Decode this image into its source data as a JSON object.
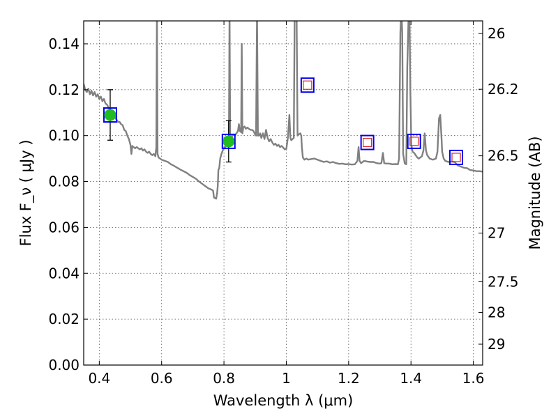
{
  "chart_data": {
    "type": "line",
    "xlabel": "Wavelength  λ (μm)",
    "ylabel": "Flux  F_ν  ( μJy )",
    "ylabel_right": "Magnitude (AB)",
    "xlim": [
      0.35,
      1.63
    ],
    "ylim": [
      0.0,
      0.15
    ],
    "grid": true,
    "grid_style": "dotted",
    "x_ticks": [
      0.4,
      0.6,
      0.8,
      1.0,
      1.2,
      1.4,
      1.6
    ],
    "x_tick_labels": [
      "0.4",
      "0.6",
      "0.8",
      "1",
      "1.2",
      "1.4",
      "1.6"
    ],
    "y_ticks": [
      0.0,
      0.02,
      0.04,
      0.06,
      0.08,
      0.1,
      0.12,
      0.14
    ],
    "y_tick_labels": [
      "0.00",
      "0.02",
      "0.04",
      "0.06",
      "0.08",
      "0.10",
      "0.12",
      "0.14"
    ],
    "right_ticks": [
      {
        "label": "26",
        "flux": 0.1445
      },
      {
        "label": "26.2",
        "flux": 0.1202
      },
      {
        "label": "26.5",
        "flux": 0.0912
      },
      {
        "label": "27",
        "flux": 0.0575
      },
      {
        "label": "27.5",
        "flux": 0.0363
      },
      {
        "label": "28",
        "flux": 0.0229
      },
      {
        "label": "29",
        "flux": 0.0091
      }
    ],
    "colors": {
      "model": "#808080",
      "observed": "#22bb22",
      "box_blue": "#0000ee",
      "box_red": "#dd2222",
      "errorbar": "#000000",
      "grid": "#555555"
    },
    "series": [
      {
        "style": "model-spectrum",
        "points": [
          [
            0.35,
            0.1225
          ],
          [
            0.355,
            0.12
          ],
          [
            0.36,
            0.119
          ],
          [
            0.365,
            0.1205
          ],
          [
            0.37,
            0.118
          ],
          [
            0.375,
            0.1195
          ],
          [
            0.38,
            0.1175
          ],
          [
            0.385,
            0.119
          ],
          [
            0.39,
            0.117
          ],
          [
            0.395,
            0.118
          ],
          [
            0.4,
            0.116
          ],
          [
            0.405,
            0.117
          ],
          [
            0.41,
            0.115
          ],
          [
            0.415,
            0.116
          ],
          [
            0.42,
            0.114
          ],
          [
            0.425,
            0.1135
          ],
          [
            0.43,
            0.112
          ],
          [
            0.435,
            0.1115
          ],
          [
            0.44,
            0.1105
          ],
          [
            0.445,
            0.109
          ],
          [
            0.45,
            0.108
          ],
          [
            0.455,
            0.107
          ],
          [
            0.46,
            0.106
          ],
          [
            0.465,
            0.106
          ],
          [
            0.47,
            0.105
          ],
          [
            0.475,
            0.1045
          ],
          [
            0.48,
            0.1025
          ],
          [
            0.485,
            0.102
          ],
          [
            0.49,
            0.1
          ],
          [
            0.495,
            0.0985
          ],
          [
            0.5,
            0.096
          ],
          [
            0.503,
            0.092
          ],
          [
            0.506,
            0.0955
          ],
          [
            0.51,
            0.095
          ],
          [
            0.515,
            0.0945
          ],
          [
            0.52,
            0.095
          ],
          [
            0.525,
            0.0945
          ],
          [
            0.53,
            0.094
          ],
          [
            0.535,
            0.0945
          ],
          [
            0.54,
            0.0935
          ],
          [
            0.545,
            0.094
          ],
          [
            0.55,
            0.093
          ],
          [
            0.555,
            0.0925
          ],
          [
            0.56,
            0.093
          ],
          [
            0.565,
            0.092
          ],
          [
            0.57,
            0.0915
          ],
          [
            0.575,
            0.092
          ],
          [
            0.58,
            0.091
          ],
          [
            0.583,
            0.095
          ],
          [
            0.585,
            0.155
          ],
          [
            0.587,
            0.092
          ],
          [
            0.59,
            0.0905
          ],
          [
            0.6,
            0.0895
          ],
          [
            0.61,
            0.089
          ],
          [
            0.62,
            0.0885
          ],
          [
            0.63,
            0.0875
          ],
          [
            0.64,
            0.0868
          ],
          [
            0.65,
            0.086
          ],
          [
            0.66,
            0.0852
          ],
          [
            0.67,
            0.0845
          ],
          [
            0.68,
            0.0838
          ],
          [
            0.69,
            0.0828
          ],
          [
            0.7,
            0.082
          ],
          [
            0.71,
            0.0812
          ],
          [
            0.72,
            0.08
          ],
          [
            0.73,
            0.079
          ],
          [
            0.74,
            0.078
          ],
          [
            0.75,
            0.077
          ],
          [
            0.76,
            0.0765
          ],
          [
            0.765,
            0.076
          ],
          [
            0.768,
            0.073
          ],
          [
            0.775,
            0.0725
          ],
          [
            0.778,
            0.075
          ],
          [
            0.78,
            0.078
          ],
          [
            0.782,
            0.085
          ],
          [
            0.785,
            0.086
          ],
          [
            0.788,
            0.09
          ],
          [
            0.792,
            0.092
          ],
          [
            0.796,
            0.0935
          ],
          [
            0.8,
            0.0945
          ],
          [
            0.804,
            0.095
          ],
          [
            0.808,
            0.0965
          ],
          [
            0.812,
            0.0975
          ],
          [
            0.816,
            0.0985
          ],
          [
            0.818,
            0.155
          ],
          [
            0.82,
            0.1
          ],
          [
            0.825,
            0.0995
          ],
          [
            0.83,
            0.1005
          ],
          [
            0.835,
            0.1
          ],
          [
            0.84,
            0.101
          ],
          [
            0.845,
            0.102
          ],
          [
            0.848,
            0.105
          ],
          [
            0.851,
            0.102
          ],
          [
            0.855,
            0.1015
          ],
          [
            0.857,
            0.14
          ],
          [
            0.859,
            0.101
          ],
          [
            0.862,
            0.1035
          ],
          [
            0.866,
            0.104
          ],
          [
            0.87,
            0.103
          ],
          [
            0.875,
            0.1035
          ],
          [
            0.88,
            0.103
          ],
          [
            0.885,
            0.1025
          ],
          [
            0.89,
            0.1025
          ],
          [
            0.895,
            0.102
          ],
          [
            0.9,
            0.1005
          ],
          [
            0.903,
            0.1
          ],
          [
            0.906,
            0.155
          ],
          [
            0.909,
            0.1
          ],
          [
            0.912,
            0.1
          ],
          [
            0.916,
            0.101
          ],
          [
            0.92,
            0.099
          ],
          [
            0.925,
            0.101
          ],
          [
            0.93,
            0.0985
          ],
          [
            0.935,
            0.1025
          ],
          [
            0.94,
            0.099
          ],
          [
            0.945,
            0.0975
          ],
          [
            0.95,
            0.0985
          ],
          [
            0.955,
            0.097
          ],
          [
            0.96,
            0.096
          ],
          [
            0.965,
            0.0965
          ],
          [
            0.97,
            0.0955
          ],
          [
            0.975,
            0.096
          ],
          [
            0.98,
            0.095
          ],
          [
            0.985,
            0.0955
          ],
          [
            0.99,
            0.0948
          ],
          [
            0.995,
            0.094
          ],
          [
            1.0,
            0.0942
          ],
          [
            1.005,
            0.099
          ],
          [
            1.01,
            0.109
          ],
          [
            1.013,
            0.099
          ],
          [
            1.016,
            0.098
          ],
          [
            1.02,
            0.0985
          ],
          [
            1.024,
            0.099
          ],
          [
            1.027,
            0.155
          ],
          [
            1.033,
            0.155
          ],
          [
            1.036,
            0.1
          ],
          [
            1.04,
            0.1005
          ],
          [
            1.045,
            0.101
          ],
          [
            1.048,
            0.1
          ],
          [
            1.05,
            0.095
          ],
          [
            1.053,
            0.0905
          ],
          [
            1.058,
            0.0895
          ],
          [
            1.065,
            0.09
          ],
          [
            1.07,
            0.0895
          ],
          [
            1.08,
            0.0898
          ],
          [
            1.09,
            0.09
          ],
          [
            1.1,
            0.0895
          ],
          [
            1.11,
            0.089
          ],
          [
            1.12,
            0.0885
          ],
          [
            1.13,
            0.0888
          ],
          [
            1.14,
            0.0882
          ],
          [
            1.15,
            0.0885
          ],
          [
            1.16,
            0.088
          ],
          [
            1.17,
            0.0877
          ],
          [
            1.18,
            0.0878
          ],
          [
            1.19,
            0.0875
          ],
          [
            1.2,
            0.0876
          ],
          [
            1.21,
            0.0874
          ],
          [
            1.22,
            0.0875
          ],
          [
            1.228,
            0.089
          ],
          [
            1.232,
            0.095
          ],
          [
            1.235,
            0.089
          ],
          [
            1.24,
            0.088
          ],
          [
            1.25,
            0.089
          ],
          [
            1.26,
            0.0887
          ],
          [
            1.27,
            0.0885
          ],
          [
            1.28,
            0.0885
          ],
          [
            1.29,
            0.088
          ],
          [
            1.3,
            0.0878
          ],
          [
            1.305,
            0.088
          ],
          [
            1.31,
            0.0925
          ],
          [
            1.314,
            0.088
          ],
          [
            1.32,
            0.0878
          ],
          [
            1.33,
            0.0878
          ],
          [
            1.34,
            0.0875
          ],
          [
            1.35,
            0.0876
          ],
          [
            1.358,
            0.0875
          ],
          [
            1.362,
            0.09
          ],
          [
            1.366,
            0.145
          ],
          [
            1.369,
            0.155
          ],
          [
            1.372,
            0.145
          ],
          [
            1.375,
            0.092
          ],
          [
            1.38,
            0.0878
          ],
          [
            1.385,
            0.0875
          ],
          [
            1.388,
            0.13
          ],
          [
            1.392,
            0.15
          ],
          [
            1.395,
            0.155
          ],
          [
            1.398,
            0.12
          ],
          [
            1.401,
            0.096
          ],
          [
            1.405,
            0.093
          ],
          [
            1.41,
            0.0925
          ],
          [
            1.415,
            0.0915
          ],
          [
            1.42,
            0.0905
          ],
          [
            1.425,
            0.09
          ],
          [
            1.43,
            0.0905
          ],
          [
            1.435,
            0.091
          ],
          [
            1.44,
            0.0935
          ],
          [
            1.444,
            0.101
          ],
          [
            1.448,
            0.0935
          ],
          [
            1.452,
            0.0915
          ],
          [
            1.46,
            0.09
          ],
          [
            1.47,
            0.0895
          ],
          [
            1.48,
            0.09
          ],
          [
            1.485,
            0.093
          ],
          [
            1.49,
            0.1075
          ],
          [
            1.494,
            0.109
          ],
          [
            1.498,
            0.099
          ],
          [
            1.5,
            0.093
          ],
          [
            1.505,
            0.09
          ],
          [
            1.51,
            0.089
          ],
          [
            1.52,
            0.0885
          ],
          [
            1.53,
            0.0887
          ],
          [
            1.54,
            0.0885
          ],
          [
            1.55,
            0.087
          ],
          [
            1.56,
            0.0865
          ],
          [
            1.57,
            0.086
          ],
          [
            1.58,
            0.0858
          ],
          [
            1.59,
            0.085
          ],
          [
            1.6,
            0.0848
          ],
          [
            1.61,
            0.0845
          ],
          [
            1.62,
            0.0845
          ],
          [
            1.63,
            0.0843
          ]
        ]
      }
    ],
    "photometry": [
      {
        "x": 0.435,
        "y": 0.109,
        "yerr": 0.011,
        "marker": "filled-circle",
        "box": true
      },
      {
        "x": 0.815,
        "y": 0.0975,
        "yerr": 0.009,
        "marker": "filled-circle",
        "box": true
      },
      {
        "x": 1.068,
        "y": 0.122,
        "marker": "open-square"
      },
      {
        "x": 1.26,
        "y": 0.097,
        "marker": "open-square"
      },
      {
        "x": 1.41,
        "y": 0.0975,
        "marker": "open-square"
      },
      {
        "x": 1.545,
        "y": 0.0905,
        "marker": "open-square"
      }
    ]
  }
}
